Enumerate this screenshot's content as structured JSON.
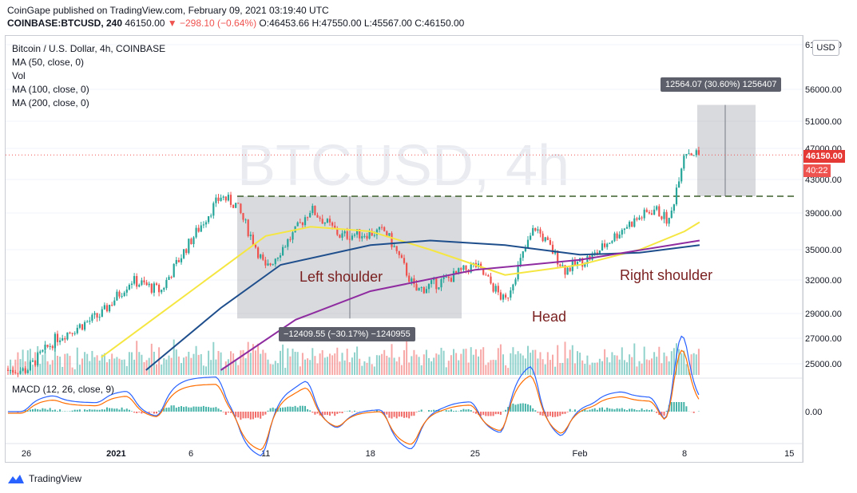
{
  "header": {
    "publisher_line": "CoinGape published on TradingView.com, February 09, 2021 03:19:40 UTC",
    "symbol_line": "COINBASE:BTCUSD, 240",
    "last": "46150.00",
    "change": "−298.10 (−0.64%)",
    "ohlc": "O:46453.66 H:47550.00 L:45567.00 C:46150.00"
  },
  "legend": {
    "title": "Bitcoin / U.S. Dollar, 4h, COINBASE",
    "ma50": "MA (50, close, 0)",
    "vol": "Vol",
    "ma100": "MA (100, close, 0)",
    "ma200": "MA (200, close, 0)"
  },
  "macd_label": "MACD (12, 26, close, 9)",
  "currency_button": "USD",
  "watermark": "BTCUSD, 4h",
  "footer_brand": "TradingView",
  "annotations": {
    "left_shoulder": "Left shoulder",
    "head": "Head",
    "right_shoulder": "Right shoulder",
    "measure_down": "−12409.55 (−30.17%) −1240955",
    "measure_up": "12564.07 (30.60%) 1256407"
  },
  "price_tags": {
    "last": "46150.00",
    "countdown": "40:22"
  },
  "colors": {
    "up": "#26a69a",
    "down": "#ef5350",
    "ma50": "#f5e642",
    "ma100": "#1e4e8c",
    "ma200": "#8e2ca0",
    "macd": "#2962ff",
    "signal": "#ff6d00"
  },
  "chart_data": {
    "type": "candlestick",
    "title": "Bitcoin / U.S. Dollar, 4h, COINBASE",
    "y_axis": {
      "ticks": [
        25000,
        27000,
        29000,
        32000,
        35000,
        39000,
        43000,
        47000,
        51000,
        56000,
        61000
      ],
      "tick_labels": [
        "25000.00",
        "27000.00",
        "29000.00",
        "32000.00",
        "35000.00",
        "39000.00",
        "43000.00",
        "47000.00",
        "51000.00",
        "56000.00",
        "61000.00"
      ]
    },
    "x_axis": {
      "tick_labels": [
        "26",
        "2021",
        "6",
        "11",
        "18",
        "25",
        "Feb",
        "8",
        "15"
      ]
    },
    "price_path": [
      [
        "2020-12-26",
        24500
      ],
      [
        "2020-12-28",
        27000
      ],
      [
        "2020-12-31",
        28900
      ],
      [
        "2021-01-02",
        32000
      ],
      [
        "2021-01-04",
        31000
      ],
      [
        "2021-01-06",
        36000
      ],
      [
        "2021-01-08",
        41000
      ],
      [
        "2021-01-09",
        40000
      ],
      [
        "2021-01-11",
        33000
      ],
      [
        "2021-01-13",
        37000
      ],
      [
        "2021-01-14",
        39500
      ],
      [
        "2021-01-16",
        36500
      ],
      [
        "2021-01-19",
        37000
      ],
      [
        "2021-01-21",
        31000
      ],
      [
        "2021-01-23",
        32000
      ],
      [
        "2021-01-25",
        33500
      ],
      [
        "2021-01-27",
        30000
      ],
      [
        "2021-01-29",
        37500
      ],
      [
        "2021-01-31",
        33000
      ],
      [
        "2021-02-02",
        34500
      ],
      [
        "2021-02-04",
        37500
      ],
      [
        "2021-02-06",
        39500
      ],
      [
        "2021-02-07",
        38000
      ],
      [
        "2021-02-08",
        46800
      ],
      [
        "2021-02-09",
        46150
      ]
    ],
    "ma50": [
      [
        "2020-12-31",
        25500
      ],
      [
        "2021-01-06",
        31000
      ],
      [
        "2021-01-11",
        36500
      ],
      [
        "2021-01-14",
        37500
      ],
      [
        "2021-01-18",
        37000
      ],
      [
        "2021-01-22",
        35000
      ],
      [
        "2021-01-27",
        32500
      ],
      [
        "2021-02-01",
        33500
      ],
      [
        "2021-02-05",
        35000
      ],
      [
        "2021-02-08",
        37000
      ],
      [
        "2021-02-09",
        38000
      ]
    ],
    "ma100": [
      [
        "2021-01-03",
        24500
      ],
      [
        "2021-01-08",
        29500
      ],
      [
        "2021-01-12",
        33500
      ],
      [
        "2021-01-18",
        35500
      ],
      [
        "2021-01-22",
        36000
      ],
      [
        "2021-01-27",
        35500
      ],
      [
        "2021-02-01",
        34500
      ],
      [
        "2021-02-05",
        34700
      ],
      [
        "2021-02-09",
        35500
      ]
    ],
    "ma200": [
      [
        "2021-01-08",
        24500
      ],
      [
        "2021-01-13",
        28500
      ],
      [
        "2021-01-18",
        31000
      ],
      [
        "2021-01-25",
        33000
      ],
      [
        "2021-02-01",
        34000
      ],
      [
        "2021-02-09",
        36000
      ]
    ],
    "neckline": 41000,
    "measure_down_range": [
      41000,
      28600
    ],
    "measure_up_range": [
      41000,
      53564
    ]
  }
}
